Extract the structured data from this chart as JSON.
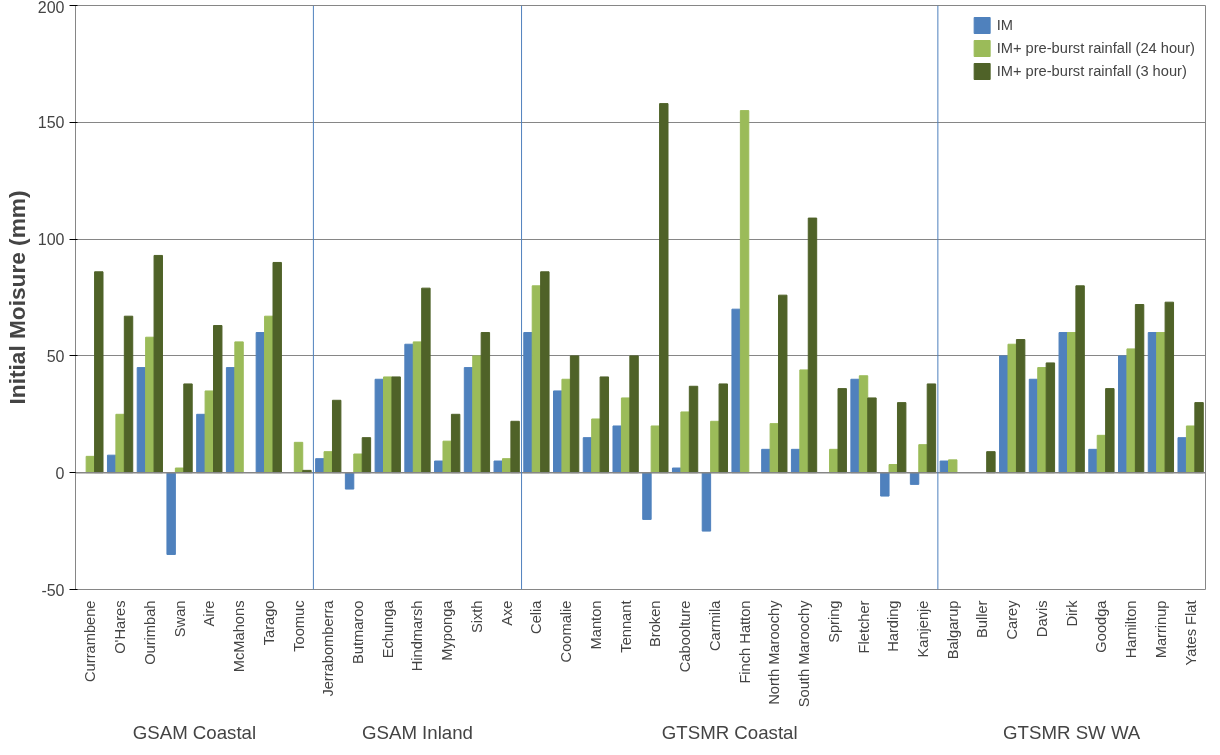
{
  "chart_data": {
    "type": "bar",
    "ylabel": "Initial Moisure (mm)",
    "categories": [
      "Currambene",
      "O'Hares",
      "Ourimbah",
      "Swan",
      "Aire",
      "McMahons",
      "Tarago",
      "Toomuc",
      "Jerrabomberra",
      "Butmaroo",
      "Echunga",
      "Hindmarsh",
      "Myponga",
      "Sixth",
      "Axe",
      "Celia",
      "Coomalie",
      "Manton",
      "Tennant",
      "Broken",
      "Caboolture",
      "Carmila",
      "Finch Hatton",
      "North Maroochy",
      "South Maroochy",
      "Spring",
      "Fletcher",
      "Harding",
      "Kanjenje",
      "Balgarup",
      "Buller",
      "Carey",
      "Davis",
      "Dirk",
      "Goodga",
      "Hamilton",
      "Marrinup",
      "Yates Flat"
    ],
    "series": [
      {
        "name": "IM",
        "color": "#4f81bd",
        "values": [
          null,
          7.5,
          45,
          -35,
          25,
          45,
          60,
          null,
          6,
          -7,
          40,
          55,
          5,
          45,
          5,
          60,
          35,
          15,
          20,
          -20,
          2,
          -25,
          70,
          10,
          10,
          null,
          40,
          -10,
          -5,
          5,
          null,
          50,
          40,
          60,
          10,
          50,
          60,
          15
        ]
      },
      {
        "name": "IM+ pre-burst rainfall (24 hour)",
        "color": "#9bbb59",
        "values": [
          7,
          25,
          58,
          2,
          35,
          56,
          67,
          13,
          9,
          8,
          41,
          56,
          13.5,
          50,
          6,
          80,
          40,
          23,
          32,
          20,
          26,
          22,
          155,
          21,
          44,
          10,
          41.5,
          3.5,
          12,
          5.5,
          null,
          55,
          45,
          60,
          16,
          53,
          60,
          20
        ]
      },
      {
        "name": "IM+ pre-burst rainfall (3 hour)",
        "color": "#4f6228",
        "values": [
          86,
          67,
          93,
          38,
          63,
          null,
          90,
          1,
          31,
          15,
          41,
          79,
          25,
          60,
          22,
          86,
          50,
          41,
          50,
          158,
          37,
          38,
          null,
          76,
          109,
          36,
          32,
          30,
          38,
          null,
          9,
          57,
          47,
          80,
          36,
          72,
          73,
          30
        ]
      }
    ],
    "ylim": [
      -50,
      200
    ],
    "yticks": [
      -50,
      0,
      50,
      100,
      150,
      200
    ],
    "grid": "y",
    "legend": "top right",
    "annotations": [
      "GSAM Coastal",
      "GSAM Inland",
      "GTSMR Coastal",
      "GTSMR SW WA"
    ]
  }
}
